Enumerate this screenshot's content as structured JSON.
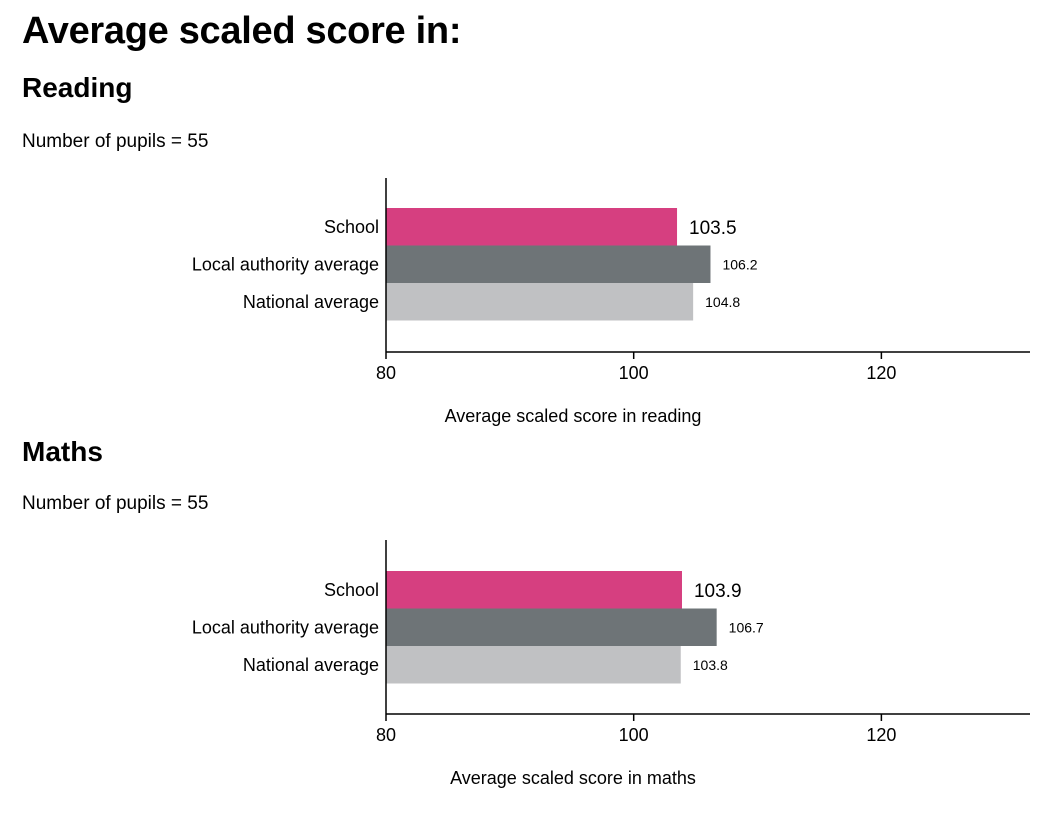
{
  "title": "Average scaled score in:",
  "pupils_label": "Number of pupils =",
  "chart_data": [
    {
      "type": "bar",
      "orientation": "horizontal",
      "title": "Reading",
      "number_of_pupils": "55",
      "categories": [
        "School",
        "Local authority average",
        "National average"
      ],
      "values": [
        103.5,
        106.2,
        104.8
      ],
      "value_labels": [
        "103.5",
        "106.2",
        "104.8"
      ],
      "colors": [
        "#d63f80",
        "#6e7477",
        "#c0c1c3"
      ],
      "xlabel": "Average scaled score in reading",
      "ylabel": "",
      "xlim": [
        80,
        132
      ],
      "xticks": [
        80,
        100,
        120
      ],
      "grid": false
    },
    {
      "type": "bar",
      "orientation": "horizontal",
      "title": "Maths",
      "number_of_pupils": "55",
      "categories": [
        "School",
        "Local authority average",
        "National average"
      ],
      "values": [
        103.9,
        106.7,
        103.8
      ],
      "value_labels": [
        "103.9",
        "106.7",
        "103.8"
      ],
      "colors": [
        "#d63f80",
        "#6e7477",
        "#c0c1c3"
      ],
      "xlabel": "Average scaled score in maths",
      "ylabel": "",
      "xlim": [
        80,
        132
      ],
      "xticks": [
        80,
        100,
        120
      ],
      "grid": false
    }
  ]
}
